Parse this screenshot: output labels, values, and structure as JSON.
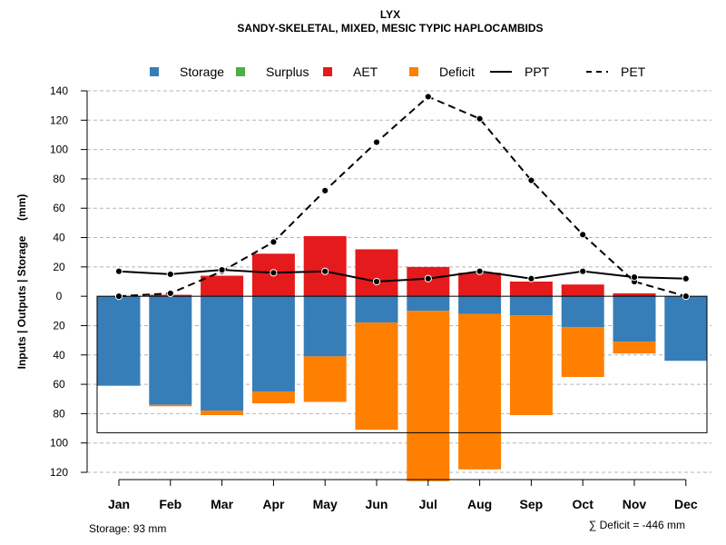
{
  "chart_data": {
    "type": "bar",
    "title": "LYX",
    "subtitle": "SANDY-SKELETAL, MIXED, MESIC TYPIC HAPLOCAMBIDS",
    "ylabel": "Inputs | Outputs | Storage     (mm)",
    "ylim": [
      -120,
      140
    ],
    "yticks": [
      140,
      120,
      100,
      80,
      60,
      40,
      20,
      0,
      -20,
      -40,
      -60,
      -80,
      -100,
      -120
    ],
    "ytick_labels": [
      "140",
      "120",
      "100",
      "80",
      "60",
      "40",
      "20",
      "0",
      "20",
      "40",
      "60",
      "80",
      "100",
      "120"
    ],
    "grid": true,
    "legend_position": "top",
    "categories": [
      "Jan",
      "Feb",
      "Mar",
      "Apr",
      "May",
      "Jun",
      "Jul",
      "Aug",
      "Sep",
      "Oct",
      "Nov",
      "Dec"
    ],
    "legend": [
      {
        "name": "Storage",
        "kind": "box",
        "color": "#377EB8"
      },
      {
        "name": "Surplus",
        "kind": "box",
        "color": "#4DAF4A"
      },
      {
        "name": "AET",
        "kind": "box",
        "color": "#E41A1C"
      },
      {
        "name": "Deficit",
        "kind": "box",
        "color": "#FF7F00"
      },
      {
        "name": "PPT",
        "kind": "solid-line",
        "color": "#000000"
      },
      {
        "name": "PET",
        "kind": "dashed-line",
        "color": "#000000"
      }
    ],
    "series": [
      {
        "name": "AET",
        "color": "#E41A1C",
        "values": [
          0,
          1,
          14,
          29,
          41,
          32,
          20,
          16,
          10,
          8,
          2,
          0
        ]
      },
      {
        "name": "Storage",
        "color": "#377EB8",
        "values": [
          -61,
          -74,
          -78,
          -65,
          -41,
          -18,
          -10,
          -12,
          -13,
          -21,
          -31,
          -44
        ]
      },
      {
        "name": "Deficit",
        "color": "#FF7F00",
        "values": [
          0,
          -1,
          -3,
          -8,
          -31,
          -73,
          -116,
          -106,
          -68,
          -34,
          -8,
          0
        ]
      },
      {
        "name": "Surplus",
        "color": "#4DAF4A",
        "values": [
          0,
          0,
          0,
          0,
          0,
          0,
          0,
          0,
          0,
          0,
          0,
          0
        ]
      },
      {
        "name": "PPT",
        "color": "#000000",
        "values": [
          17,
          15,
          18,
          16,
          17,
          10,
          12,
          17,
          12,
          17,
          13,
          12
        ]
      },
      {
        "name": "PET",
        "color": "#000000",
        "values": [
          0,
          2,
          17,
          37,
          72,
          105,
          136,
          121,
          79,
          42,
          10,
          0
        ]
      }
    ],
    "storage_capacity": 93,
    "storage_note": "Storage: 93 mm",
    "deficit_note": "∑ Deficit = -446 mm"
  }
}
